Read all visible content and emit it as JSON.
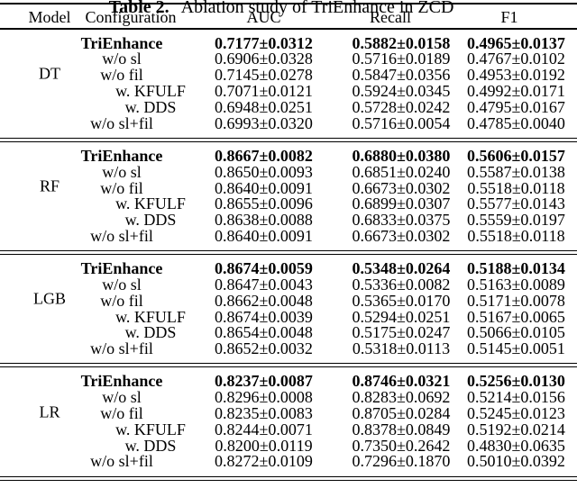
{
  "caption": {
    "label": "Table 2.",
    "text": "Ablation study of TriEnhance in ZCD"
  },
  "columns": [
    "Model",
    "Configuration",
    "AUC",
    "Recall",
    "F1"
  ],
  "groups": [
    {
      "model": "DT",
      "rows": [
        {
          "config": "TriEnhance",
          "bold": true,
          "indent": false,
          "auc": "0.7177±0.0312",
          "recall": "0.5882±0.0158",
          "f1": "0.4965±0.0137"
        },
        {
          "config": "w/o sl",
          "bold": false,
          "indent": false,
          "auc": "0.6906±0.0328",
          "recall": "0.5716±0.0189",
          "f1": "0.4767±0.0102"
        },
        {
          "config": "w/o fil",
          "bold": false,
          "indent": false,
          "auc": "0.7145±0.0278",
          "recall": "0.5847±0.0356",
          "f1": "0.4953±0.0192"
        },
        {
          "config": "w. KFULF",
          "bold": false,
          "indent": true,
          "auc": "0.7071±0.0121",
          "recall": "0.5924±0.0345",
          "f1": "0.4992±0.0171"
        },
        {
          "config": "w. DDS",
          "bold": false,
          "indent": true,
          "auc": "0.6948±0.0251",
          "recall": "0.5728±0.0242",
          "f1": "0.4795±0.0167"
        },
        {
          "config": "w/o sl+fil",
          "bold": false,
          "indent": false,
          "auc": "0.6993±0.0320",
          "recall": "0.5716±0.0054",
          "f1": "0.4785±0.0040"
        }
      ]
    },
    {
      "model": "RF",
      "rows": [
        {
          "config": "TriEnhance",
          "bold": true,
          "indent": false,
          "auc": "0.8667±0.0082",
          "recall": "0.6880±0.0380",
          "f1": "0.5606±0.0157"
        },
        {
          "config": "w/o sl",
          "bold": false,
          "indent": false,
          "auc": "0.8650±0.0093",
          "recall": "0.6851±0.0240",
          "f1": "0.5587±0.0138"
        },
        {
          "config": "w/o fil",
          "bold": false,
          "indent": false,
          "auc": "0.8640±0.0091",
          "recall": "0.6673±0.0302",
          "f1": "0.5518±0.0118"
        },
        {
          "config": "w. KFULF",
          "bold": false,
          "indent": true,
          "auc": "0.8655±0.0096",
          "recall": "0.6899±0.0307",
          "f1": "0.5577±0.0143"
        },
        {
          "config": "w. DDS",
          "bold": false,
          "indent": true,
          "auc": "0.8638±0.0088",
          "recall": "0.6833±0.0375",
          "f1": "0.5559±0.0197"
        },
        {
          "config": "w/o sl+fil",
          "bold": false,
          "indent": false,
          "auc": "0.8640±0.0091",
          "recall": "0.6673±0.0302",
          "f1": "0.5518±0.0118"
        }
      ]
    },
    {
      "model": "LGB",
      "rows": [
        {
          "config": "TriEnhance",
          "bold": true,
          "indent": false,
          "auc": "0.8674±0.0059",
          "recall": "0.5348±0.0264",
          "f1": "0.5188±0.0134"
        },
        {
          "config": "w/o sl",
          "bold": false,
          "indent": false,
          "auc": "0.8647±0.0043",
          "recall": "0.5336±0.0082",
          "f1": "0.5163±0.0089"
        },
        {
          "config": "w/o fil",
          "bold": false,
          "indent": false,
          "auc": "0.8662±0.0048",
          "recall": "0.5365±0.0170",
          "f1": "0.5171±0.0078"
        },
        {
          "config": "w. KFULF",
          "bold": false,
          "indent": true,
          "auc": "0.8674±0.0039",
          "recall": "0.5294±0.0251",
          "f1": "0.5167±0.0065"
        },
        {
          "config": "w. DDS",
          "bold": false,
          "indent": true,
          "auc": "0.8654±0.0048",
          "recall": "0.5175±0.0247",
          "f1": "0.5066±0.0105"
        },
        {
          "config": "w/o sl+fil",
          "bold": false,
          "indent": false,
          "auc": "0.8652±0.0032",
          "recall": "0.5318±0.0113",
          "f1": "0.5145±0.0051"
        }
      ]
    },
    {
      "model": "LR",
      "rows": [
        {
          "config": "TriEnhance",
          "bold": true,
          "indent": false,
          "auc": "0.8237±0.0087",
          "recall": "0.8746±0.0321",
          "f1": "0.5256±0.0130"
        },
        {
          "config": "w/o sl",
          "bold": false,
          "indent": false,
          "auc": "0.8296±0.0008",
          "recall": "0.8283±0.0692",
          "f1": "0.5214±0.0156"
        },
        {
          "config": "w/o fil",
          "bold": false,
          "indent": false,
          "auc": "0.8235±0.0083",
          "recall": "0.8705±0.0284",
          "f1": "0.5245±0.0123"
        },
        {
          "config": "w. KFULF",
          "bold": false,
          "indent": true,
          "auc": "0.8244±0.0071",
          "recall": "0.8378±0.0849",
          "f1": "0.5192±0.0214"
        },
        {
          "config": "w. DDS",
          "bold": false,
          "indent": true,
          "auc": "0.8200±0.0119",
          "recall": "0.7350±0.2642",
          "f1": "0.4830±0.0635"
        },
        {
          "config": "w/o sl+fil",
          "bold": false,
          "indent": false,
          "auc": "0.8272±0.0109",
          "recall": "0.7296±0.1870",
          "f1": "0.5010±0.0392"
        }
      ]
    }
  ]
}
